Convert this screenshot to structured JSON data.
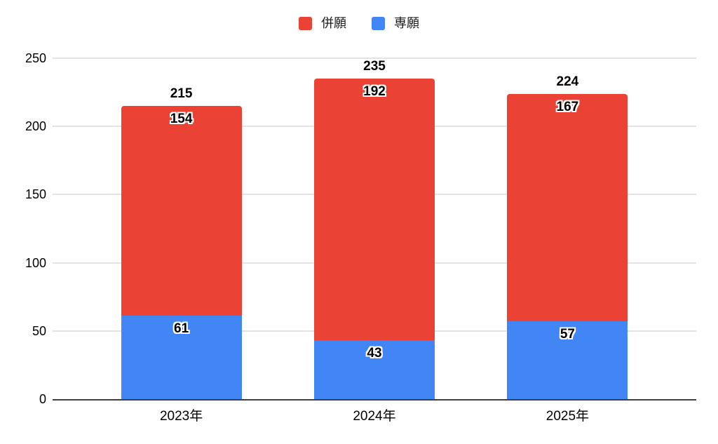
{
  "chart_data": {
    "type": "bar",
    "stacked": true,
    "orientation": "vertical",
    "title": "",
    "xlabel": "",
    "ylabel": "",
    "categories": [
      "2023年",
      "2024年",
      "2025年"
    ],
    "series": [
      {
        "name": "専願",
        "color": "#4285F4",
        "values": [
          61,
          43,
          57
        ]
      },
      {
        "name": "併願",
        "color": "#EA4335",
        "values": [
          154,
          192,
          167
        ]
      }
    ],
    "totals": [
      215,
      235,
      224
    ],
    "legend": {
      "position": "top",
      "items": [
        {
          "label": "併願",
          "color": "#EA4335"
        },
        {
          "label": "専願",
          "color": "#4285F4"
        }
      ]
    },
    "ylim": [
      0,
      250
    ],
    "yticks": [
      0,
      50,
      100,
      150,
      200,
      250
    ],
    "grid": true,
    "value_labels": "inside-top",
    "total_labels": "above"
  },
  "style": {
    "grid_color": "#e3e3e3",
    "axis_color": "#3f3f3f",
    "label_color": "#000000",
    "background": "#ffffff"
  }
}
